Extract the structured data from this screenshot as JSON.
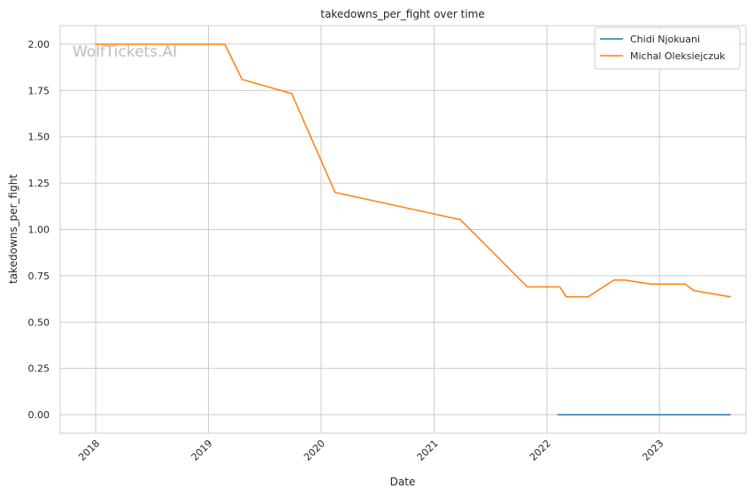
{
  "watermark": "WolfTickets.AI",
  "chart_data": {
    "type": "line",
    "title": "takedowns_per_fight over time",
    "xlabel": "Date",
    "ylabel": "takedowns_per_fight",
    "x_ticks": [
      "2018",
      "2019",
      "2020",
      "2021",
      "2022",
      "2023"
    ],
    "y_ticks": [
      "0.00",
      "0.25",
      "0.50",
      "0.75",
      "1.00",
      "1.25",
      "1.50",
      "1.75",
      "2.00"
    ],
    "ylim": [
      -0.1,
      2.1
    ],
    "xlim": [
      "2017-09-08",
      "2023-10-08"
    ],
    "grid": true,
    "legend_position": "top-right",
    "series": [
      {
        "name": "Chidi Njokuani",
        "color": "#1f77b4",
        "points": [
          {
            "x": "2022-02-05",
            "y": 0.0
          },
          {
            "x": "2023-08-19",
            "y": 0.0
          }
        ]
      },
      {
        "name": "Michal Oleksiejczuk",
        "color": "#ff7f0e",
        "points": [
          {
            "x": "2017-12-30",
            "y": 2.0
          },
          {
            "x": "2019-02-23",
            "y": 2.0
          },
          {
            "x": "2019-04-20",
            "y": 1.81
          },
          {
            "x": "2019-09-28",
            "y": 1.733
          },
          {
            "x": "2020-02-15",
            "y": 1.2
          },
          {
            "x": "2021-03-27",
            "y": 1.053
          },
          {
            "x": "2021-10-30",
            "y": 0.69
          },
          {
            "x": "2022-02-12",
            "y": 0.69
          },
          {
            "x": "2022-03-05",
            "y": 0.636
          },
          {
            "x": "2022-05-14",
            "y": 0.636
          },
          {
            "x": "2022-08-06",
            "y": 0.727
          },
          {
            "x": "2022-09-10",
            "y": 0.727
          },
          {
            "x": "2022-12-03",
            "y": 0.705
          },
          {
            "x": "2023-03-25",
            "y": 0.705
          },
          {
            "x": "2023-04-22",
            "y": 0.67
          },
          {
            "x": "2023-08-19",
            "y": 0.636
          }
        ]
      }
    ]
  }
}
